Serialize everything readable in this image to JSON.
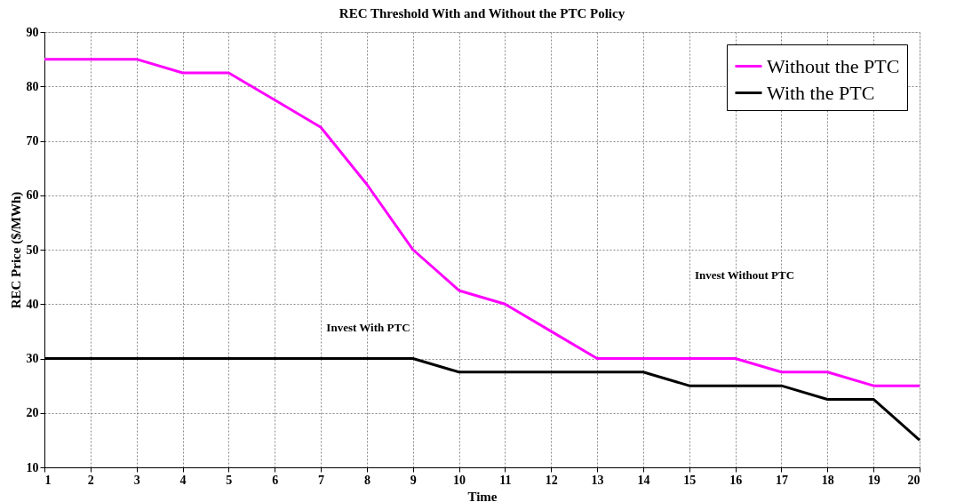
{
  "chart_data": {
    "type": "line",
    "title": "REC Threshold With and Without the PTC Policy",
    "xlabel": "Time",
    "ylabel": "REC Price ($/MWh)",
    "x": [
      1,
      2,
      3,
      4,
      5,
      6,
      7,
      8,
      9,
      10,
      11,
      12,
      13,
      14,
      15,
      16,
      17,
      18,
      19,
      20
    ],
    "series": [
      {
        "name": "Without the PTC",
        "color": "#ff00ff",
        "values": [
          85,
          85,
          85,
          82.5,
          82.5,
          77.5,
          72.5,
          62,
          50,
          42.5,
          40,
          35,
          30,
          30,
          30,
          30,
          27.5,
          27.5,
          25,
          25
        ]
      },
      {
        "name": "With the PTC",
        "color": "#000000",
        "values": [
          30,
          30,
          30,
          30,
          30,
          30,
          30,
          30,
          30,
          27.5,
          27.5,
          27.5,
          27.5,
          27.5,
          25,
          25,
          25,
          22.5,
          22.5,
          15
        ]
      }
    ],
    "xlim": [
      1,
      20
    ],
    "xticks": [
      1,
      2,
      3,
      4,
      5,
      6,
      7,
      8,
      9,
      10,
      11,
      12,
      13,
      14,
      15,
      16,
      17,
      18,
      19,
      20
    ],
    "ylim": [
      10,
      90
    ],
    "yticks": [
      10,
      20,
      30,
      40,
      50,
      60,
      70,
      80,
      90
    ],
    "grid": true,
    "legend": "top right",
    "line_style": "solid",
    "marker": "none",
    "annotations": [
      "Invest With PTC",
      "Invest Without PTC"
    ]
  }
}
